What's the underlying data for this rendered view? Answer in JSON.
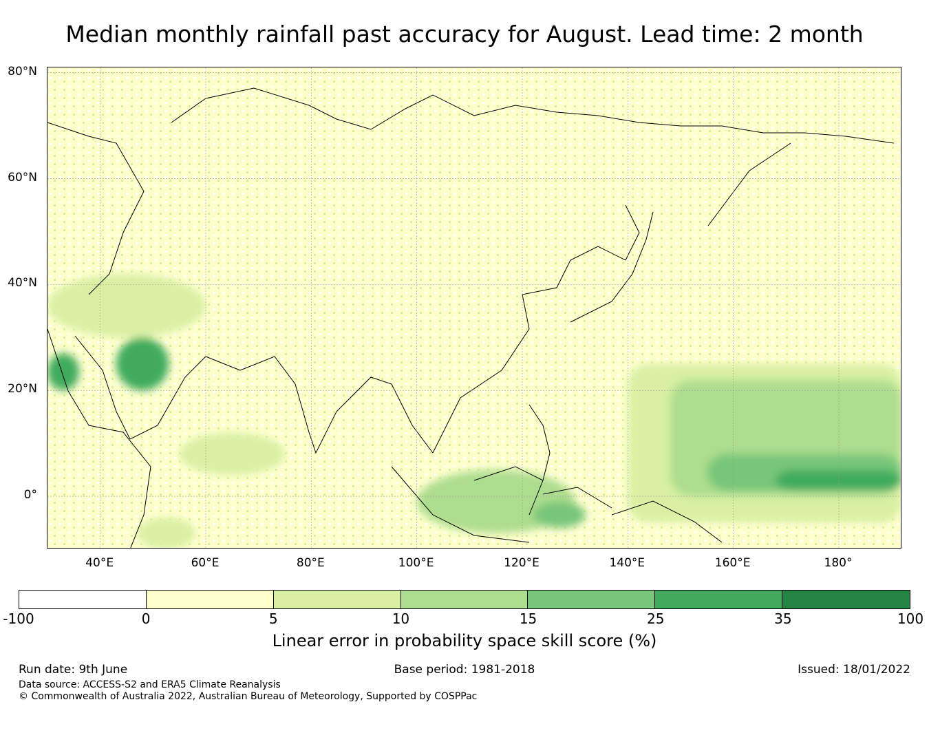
{
  "title": "Median monthly rainfall past accuracy for August. Lead time: 2 month",
  "map": {
    "projection": "plate-carree",
    "lon_range": [
      30,
      192
    ],
    "lat_range": [
      -10,
      81
    ],
    "lat_labels": [
      "80°N",
      "60°N",
      "40°N",
      "20°N",
      "0°"
    ],
    "lat_values": [
      80,
      60,
      40,
      20,
      0
    ],
    "lon_labels": [
      "40°E",
      "60°E",
      "80°E",
      "100°E",
      "120°E",
      "140°E",
      "160°E",
      "180°"
    ],
    "lon_values": [
      40,
      60,
      80,
      100,
      120,
      140,
      160,
      180
    ],
    "skill_regions": [
      {
        "level": 2,
        "shape": "belt",
        "lon": [
          140,
          192
        ],
        "lat": [
          -5,
          25
        ]
      },
      {
        "level": 3,
        "shape": "belt",
        "lon": [
          148,
          192
        ],
        "lat": [
          0,
          22
        ]
      },
      {
        "level": 4,
        "shape": "belt",
        "lon": [
          155,
          192
        ],
        "lat": [
          1,
          8
        ]
      },
      {
        "level": 5,
        "shape": "belt",
        "lon": [
          168,
          192
        ],
        "lat": [
          1,
          5
        ]
      },
      {
        "level": 3,
        "shape": "blob",
        "lon": [
          100,
          130
        ],
        "lat": [
          -7,
          5
        ]
      },
      {
        "level": 4,
        "shape": "blob",
        "lon": [
          122,
          132
        ],
        "lat": [
          -6,
          -1
        ]
      },
      {
        "level": 5,
        "shape": "blob",
        "lon": [
          43,
          53
        ],
        "lat": [
          20,
          30
        ]
      },
      {
        "level": 5,
        "shape": "blob",
        "lon": [
          30,
          36
        ],
        "lat": [
          20,
          27
        ]
      },
      {
        "level": 2,
        "shape": "blob",
        "lon": [
          55,
          75
        ],
        "lat": [
          4,
          12
        ]
      },
      {
        "level": 2,
        "shape": "blob",
        "lon": [
          47,
          58
        ],
        "lat": [
          -10,
          -4
        ]
      },
      {
        "level": 2,
        "shape": "blob",
        "lon": [
          30,
          60
        ],
        "lat": [
          30,
          42
        ]
      }
    ]
  },
  "colorbar": {
    "label": "Linear error in probability space skill score (%)",
    "ticks": [
      "-100",
      "0",
      "5",
      "10",
      "15",
      "25",
      "35",
      "100"
    ],
    "colors": [
      "#ffffff",
      "#ffffcc",
      "#d9f0a3",
      "#addd8e",
      "#78c679",
      "#41ab5d",
      "#238443"
    ]
  },
  "footer": {
    "run_date": "Run date: 9th June",
    "base_period": "Base period: 1981-2018",
    "issued": "Issued: 18/01/2022",
    "data_source": "Data source: ACCESS-S2 and ERA5 Climate Reanalysis",
    "copyright": "© Commonwealth of Australia 2022, Australian Bureau of Meteorology, Supported by COSPPac"
  }
}
